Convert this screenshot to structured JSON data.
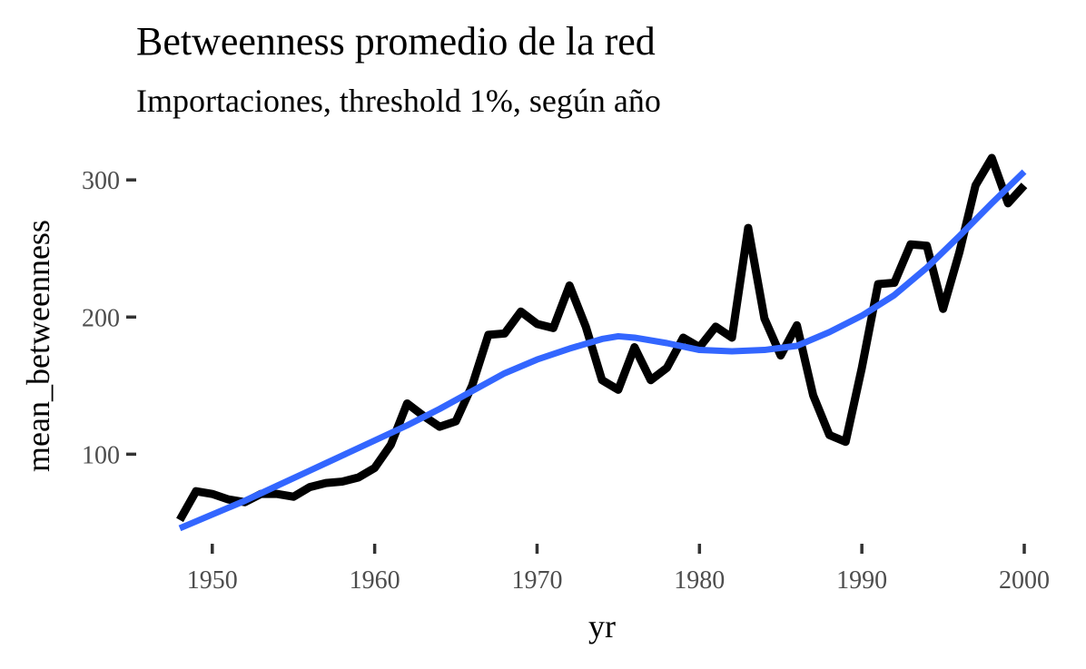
{
  "chart_data": {
    "type": "line",
    "title": "Betweenness promedio de la red",
    "subtitle": "Importaciones, threshold 1%, según año",
    "xlabel": "yr",
    "ylabel": "mean_betweenness",
    "xlim": [
      1948,
      2000
    ],
    "ylim": [
      40,
      320
    ],
    "x_ticks": [
      1950,
      1960,
      1970,
      1980,
      1990,
      2000
    ],
    "y_ticks": [
      100,
      200,
      300
    ],
    "x_tick_labels": [
      "1950",
      "1960",
      "1970",
      "1980",
      "1990",
      "2000"
    ],
    "y_tick_labels": [
      "100",
      "200",
      "300"
    ],
    "grid": false,
    "series": [
      {
        "kind": "observed",
        "color": "#000000",
        "x": [
          1948,
          1949,
          1950,
          1951,
          1952,
          1953,
          1954,
          1955,
          1956,
          1957,
          1958,
          1959,
          1960,
          1961,
          1962,
          1963,
          1964,
          1965,
          1966,
          1967,
          1968,
          1969,
          1970,
          1971,
          1972,
          1973,
          1974,
          1975,
          1976,
          1977,
          1978,
          1979,
          1980,
          1981,
          1982,
          1983,
          1984,
          1985,
          1986,
          1987,
          1988,
          1989,
          1990,
          1991,
          1992,
          1993,
          1994,
          1995,
          1996,
          1997,
          1998,
          1999,
          2000
        ],
        "values": [
          52,
          73,
          71,
          67,
          65,
          71,
          71,
          69,
          76,
          79,
          80,
          83,
          90,
          107,
          137,
          128,
          120,
          124,
          150,
          187,
          188,
          204,
          195,
          192,
          223,
          193,
          154,
          147,
          178,
          154,
          163,
          185,
          178,
          193,
          185,
          265,
          199,
          172,
          194,
          143,
          114,
          109,
          163,
          224,
          225,
          253,
          252,
          206,
          247,
          296,
          316,
          283,
          296
        ]
      },
      {
        "kind": "smooth",
        "color": "#3366ff",
        "x": [
          1948,
          1950,
          1952,
          1954,
          1956,
          1958,
          1960,
          1962,
          1964,
          1966,
          1968,
          1970,
          1972,
          1974,
          1975,
          1976,
          1978,
          1980,
          1982,
          1984,
          1986,
          1988,
          1990,
          1992,
          1994,
          1996,
          1998,
          2000
        ],
        "values": [
          46,
          56,
          66,
          77,
          88,
          99,
          110,
          121,
          133,
          146,
          159,
          169,
          177,
          184,
          186,
          185,
          181,
          176,
          175,
          176,
          179,
          189,
          201,
          216,
          236,
          259,
          283,
          306
        ]
      }
    ]
  }
}
